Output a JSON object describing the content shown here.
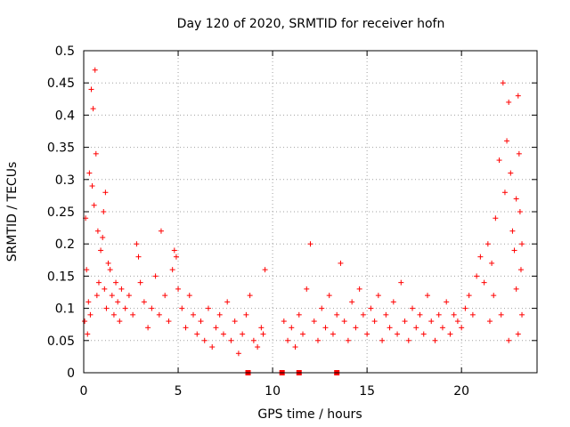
{
  "chart_data": {
    "type": "scatter",
    "title": "Day 120 of 2020, SRMTID for receiver hofn",
    "xlabel": "GPS time / hours",
    "ylabel": "SRMTID / TECUs",
    "xlim": [
      0,
      24
    ],
    "ylim": [
      0,
      0.5
    ],
    "xticks": [
      0,
      5,
      10,
      15,
      20
    ],
    "xtick_labels": [
      "0",
      "5",
      "10",
      "15",
      "20"
    ],
    "yticks": [
      0,
      0.05,
      0.1,
      0.15,
      0.2,
      0.25,
      0.3,
      0.35,
      0.4,
      0.45,
      0.5
    ],
    "ytick_labels": [
      "0",
      "0.05",
      "0.1",
      "0.15",
      "0.2",
      "0.25",
      "0.3",
      "0.35",
      "0.4",
      "0.45",
      "0.5"
    ],
    "grid": true,
    "marker": "+",
    "color": "#ff0000",
    "series": [
      {
        "name": "SRMTID",
        "points": [
          [
            0.05,
            0.08
          ],
          [
            0.1,
            0.24
          ],
          [
            0.15,
            0.16
          ],
          [
            0.2,
            0.06
          ],
          [
            0.25,
            0.11
          ],
          [
            0.3,
            0.31
          ],
          [
            0.35,
            0.09
          ],
          [
            0.4,
            0.44
          ],
          [
            0.45,
            0.29
          ],
          [
            0.5,
            0.41
          ],
          [
            0.55,
            0.26
          ],
          [
            0.6,
            0.47
          ],
          [
            0.65,
            0.34
          ],
          [
            0.7,
            0.12
          ],
          [
            0.75,
            0.22
          ],
          [
            0.8,
            0.14
          ],
          [
            0.9,
            0.19
          ],
          [
            1.0,
            0.21
          ],
          [
            1.05,
            0.25
          ],
          [
            1.1,
            0.13
          ],
          [
            1.15,
            0.28
          ],
          [
            1.2,
            0.1
          ],
          [
            1.3,
            0.17
          ],
          [
            1.4,
            0.16
          ],
          [
            1.5,
            0.12
          ],
          [
            1.6,
            0.09
          ],
          [
            1.7,
            0.14
          ],
          [
            1.8,
            0.11
          ],
          [
            1.9,
            0.08
          ],
          [
            2.0,
            0.13
          ],
          [
            2.2,
            0.1
          ],
          [
            2.4,
            0.12
          ],
          [
            2.6,
            0.09
          ],
          [
            2.8,
            0.2
          ],
          [
            2.9,
            0.18
          ],
          [
            3.0,
            0.14
          ],
          [
            3.2,
            0.11
          ],
          [
            3.4,
            0.07
          ],
          [
            3.6,
            0.1
          ],
          [
            3.8,
            0.15
          ],
          [
            4.0,
            0.09
          ],
          [
            4.1,
            0.22
          ],
          [
            4.3,
            0.12
          ],
          [
            4.5,
            0.08
          ],
          [
            4.7,
            0.16
          ],
          [
            4.8,
            0.19
          ],
          [
            4.9,
            0.18
          ],
          [
            5.0,
            0.13
          ],
          [
            5.2,
            0.1
          ],
          [
            5.4,
            0.07
          ],
          [
            5.6,
            0.12
          ],
          [
            5.8,
            0.09
          ],
          [
            6.0,
            0.06
          ],
          [
            6.2,
            0.08
          ],
          [
            6.4,
            0.05
          ],
          [
            6.6,
            0.1
          ],
          [
            6.8,
            0.04
          ],
          [
            7.0,
            0.07
          ],
          [
            7.2,
            0.09
          ],
          [
            7.4,
            0.06
          ],
          [
            7.6,
            0.11
          ],
          [
            7.8,
            0.05
          ],
          [
            8.0,
            0.08
          ],
          [
            8.2,
            0.03
          ],
          [
            8.4,
            0.06
          ],
          [
            8.6,
            0.09
          ],
          [
            8.8,
            0.12
          ],
          [
            9.0,
            0.05
          ],
          [
            9.2,
            0.04
          ],
          [
            9.4,
            0.07
          ],
          [
            9.5,
            0.06
          ],
          [
            9.6,
            0.16
          ],
          [
            10.6,
            0.08
          ],
          [
            10.8,
            0.05
          ],
          [
            11.0,
            0.07
          ],
          [
            11.2,
            0.04
          ],
          [
            11.4,
            0.09
          ],
          [
            11.6,
            0.06
          ],
          [
            11.8,
            0.13
          ],
          [
            12.0,
            0.2
          ],
          [
            12.2,
            0.08
          ],
          [
            12.4,
            0.05
          ],
          [
            12.6,
            0.1
          ],
          [
            12.8,
            0.07
          ],
          [
            13.0,
            0.12
          ],
          [
            13.2,
            0.06
          ],
          [
            13.4,
            0.09
          ],
          [
            13.6,
            0.17
          ],
          [
            13.8,
            0.08
          ],
          [
            14.0,
            0.05
          ],
          [
            14.2,
            0.11
          ],
          [
            14.4,
            0.07
          ],
          [
            14.6,
            0.13
          ],
          [
            14.8,
            0.09
          ],
          [
            15.0,
            0.06
          ],
          [
            15.2,
            0.1
          ],
          [
            15.4,
            0.08
          ],
          [
            15.6,
            0.12
          ],
          [
            15.8,
            0.05
          ],
          [
            16.0,
            0.09
          ],
          [
            16.2,
            0.07
          ],
          [
            16.4,
            0.11
          ],
          [
            16.6,
            0.06
          ],
          [
            16.8,
            0.14
          ],
          [
            17.0,
            0.08
          ],
          [
            17.2,
            0.05
          ],
          [
            17.4,
            0.1
          ],
          [
            17.6,
            0.07
          ],
          [
            17.8,
            0.09
          ],
          [
            18.0,
            0.06
          ],
          [
            18.2,
            0.12
          ],
          [
            18.4,
            0.08
          ],
          [
            18.6,
            0.05
          ],
          [
            18.8,
            0.09
          ],
          [
            19.0,
            0.07
          ],
          [
            19.2,
            0.11
          ],
          [
            19.4,
            0.06
          ],
          [
            19.6,
            0.09
          ],
          [
            19.8,
            0.08
          ],
          [
            20.0,
            0.07
          ],
          [
            20.2,
            0.1
          ],
          [
            20.4,
            0.12
          ],
          [
            20.6,
            0.09
          ],
          [
            20.8,
            0.15
          ],
          [
            21.0,
            0.18
          ],
          [
            21.2,
            0.14
          ],
          [
            21.4,
            0.2
          ],
          [
            21.6,
            0.17
          ],
          [
            21.8,
            0.24
          ],
          [
            22.0,
            0.33
          ],
          [
            22.2,
            0.45
          ],
          [
            22.3,
            0.28
          ],
          [
            22.4,
            0.36
          ],
          [
            22.5,
            0.42
          ],
          [
            22.6,
            0.31
          ],
          [
            22.7,
            0.22
          ],
          [
            22.8,
            0.19
          ],
          [
            22.9,
            0.27
          ],
          [
            23.0,
            0.43
          ],
          [
            23.05,
            0.34
          ],
          [
            23.1,
            0.25
          ],
          [
            23.15,
            0.16
          ],
          [
            23.2,
            0.09
          ],
          [
            23.0,
            0.06
          ],
          [
            22.5,
            0.05
          ],
          [
            21.5,
            0.08
          ],
          [
            21.7,
            0.12
          ],
          [
            22.1,
            0.09
          ],
          [
            22.9,
            0.13
          ],
          [
            23.2,
            0.2
          ]
        ]
      }
    ],
    "gap_markers_x": [
      8.7,
      10.5,
      11.4,
      13.4
    ]
  }
}
